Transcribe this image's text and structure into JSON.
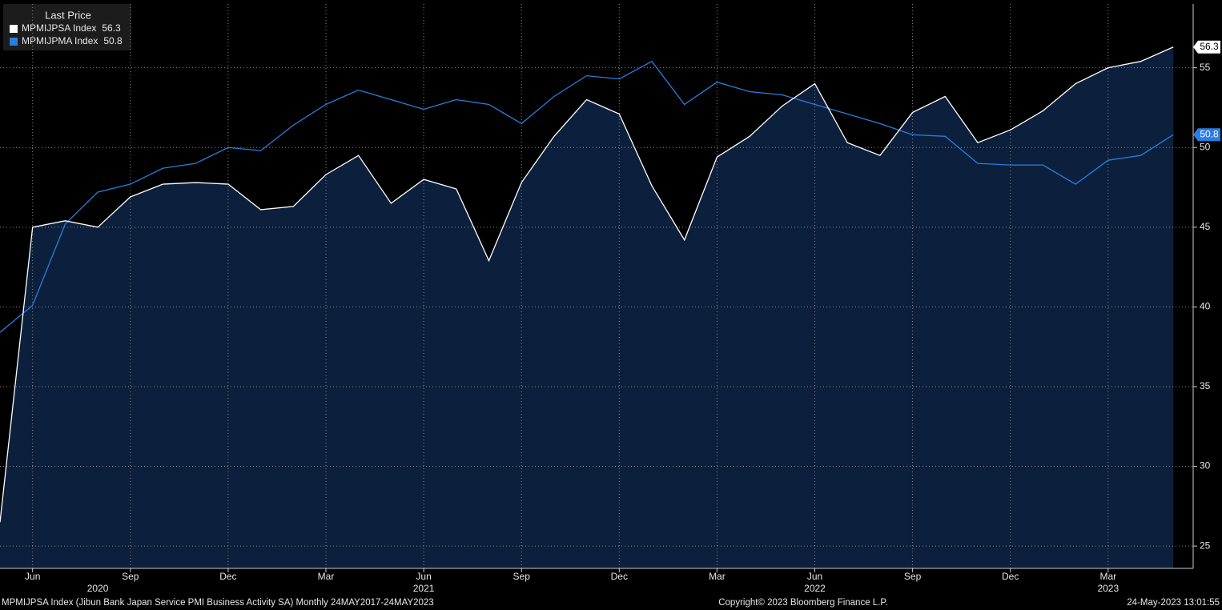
{
  "chart_data": {
    "type": "line",
    "legend_title": "Last Price",
    "footer_left": "MPMIJPSA Index (Jibun Bank Japan Service PMI Business Activity SA)  Monthly 24MAY2017-24MAY2023",
    "footer_center": "Copyright© 2023 Bloomberg Finance L.P.",
    "footer_right": "24-May-2023 13:01:55",
    "x": [
      "2020-05",
      "2020-06",
      "2020-07",
      "2020-08",
      "2020-09",
      "2020-10",
      "2020-11",
      "2020-12",
      "2021-01",
      "2021-02",
      "2021-03",
      "2021-04",
      "2021-05",
      "2021-06",
      "2021-07",
      "2021-08",
      "2021-09",
      "2021-10",
      "2021-11",
      "2021-12",
      "2022-01",
      "2022-02",
      "2022-03",
      "2022-04",
      "2022-05",
      "2022-06",
      "2022-07",
      "2022-08",
      "2022-09",
      "2022-10",
      "2022-11",
      "2022-12",
      "2023-01",
      "2023-02",
      "2023-03",
      "2023-04",
      "2023-05"
    ],
    "series": [
      {
        "name": "MPMIJPSA Index",
        "color": "#ffffff",
        "fill": "#0c203d",
        "values": [
          26.5,
          45.0,
          45.4,
          45.0,
          46.9,
          47.7,
          47.8,
          47.7,
          46.1,
          46.3,
          48.3,
          49.5,
          46.5,
          48.0,
          47.4,
          42.9,
          47.8,
          50.7,
          53.0,
          52.1,
          47.6,
          44.2,
          49.4,
          50.7,
          52.6,
          54.0,
          50.3,
          49.5,
          52.2,
          53.2,
          50.3,
          51.1,
          52.3,
          54.0,
          55.0,
          55.4,
          56.3
        ]
      },
      {
        "name": "MPMIJPMA Index",
        "color": "#2a7de1",
        "values": [
          38.4,
          40.1,
          45.2,
          47.2,
          47.7,
          48.7,
          49.0,
          50.0,
          49.8,
          51.4,
          52.7,
          53.6,
          53.0,
          52.4,
          53.0,
          52.7,
          51.5,
          53.2,
          54.5,
          54.3,
          55.4,
          52.7,
          54.1,
          53.5,
          53.3,
          52.7,
          52.1,
          51.5,
          50.8,
          50.7,
          49.0,
          48.9,
          48.9,
          47.7,
          49.2,
          49.5,
          50.8
        ]
      }
    ],
    "ylim": [
      23.6,
      59
    ],
    "yticks": [
      25,
      30,
      35,
      40,
      45,
      50,
      55
    ],
    "xticks": [
      {
        "value": "2020-06",
        "label": "Jun"
      },
      {
        "value": "2020-09",
        "label": "Sep"
      },
      {
        "value": "2020-12",
        "label": "Dec"
      },
      {
        "value": "2021-03",
        "label": "Mar"
      },
      {
        "value": "2021-06",
        "label": "Jun"
      },
      {
        "value": "2021-09",
        "label": "Sep"
      },
      {
        "value": "2021-12",
        "label": "Dec"
      },
      {
        "value": "2022-03",
        "label": "Mar"
      },
      {
        "value": "2022-06",
        "label": "Jun"
      },
      {
        "value": "2022-09",
        "label": "Sep"
      },
      {
        "value": "2022-12",
        "label": "Dec"
      },
      {
        "value": "2023-03",
        "label": "Mar"
      }
    ],
    "year_labels": [
      {
        "value": "2020-08",
        "label": "2020"
      },
      {
        "value": "2021-06",
        "label": "2021"
      },
      {
        "value": "2022-06",
        "label": "2022"
      },
      {
        "value": "2023-03",
        "label": "2023"
      }
    ],
    "grid": true
  }
}
